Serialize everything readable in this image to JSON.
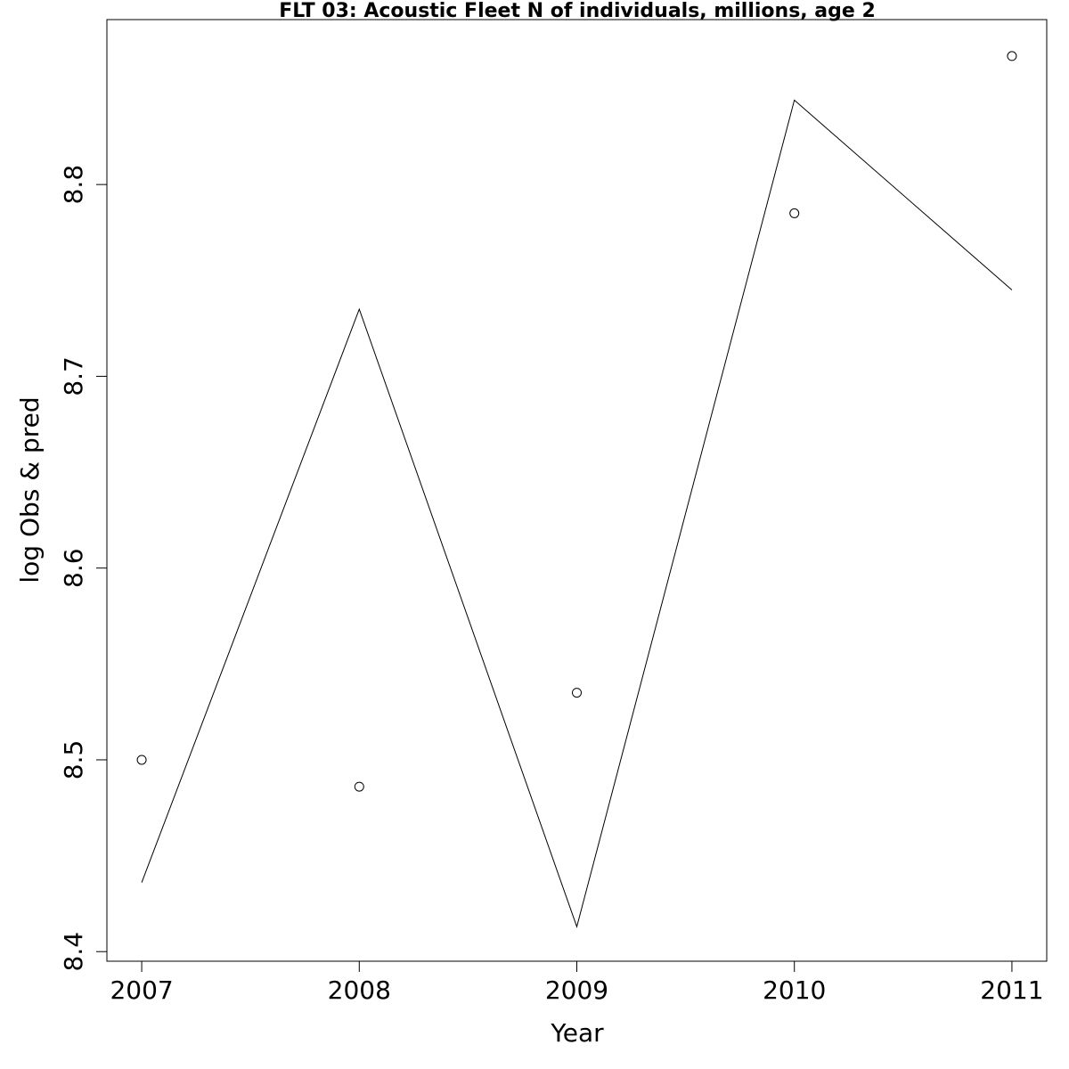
{
  "chart_data": {
    "type": "line",
    "title": "FLT 03: Acoustic Fleet  N of individuals, millions, age 2",
    "x_label": "Year",
    "y_label": "log Obs & pred",
    "x": [
      2007,
      2008,
      2009,
      2010,
      2011
    ],
    "series": [
      {
        "type": "scatter",
        "color": "#000000",
        "values": [
          8.5,
          8.486,
          8.535,
          8.785,
          8.867
        ]
      },
      {
        "type": "line",
        "color": "#000000",
        "values": [
          8.436,
          8.735,
          8.413,
          8.844,
          8.745
        ]
      }
    ],
    "xlim": [
      2006.84,
      2011.16
    ],
    "ylim": [
      8.395,
      8.886
    ],
    "xticks": [
      2007,
      2008,
      2009,
      2010,
      2011
    ],
    "yticks": [
      8.4,
      8.5,
      8.6,
      8.7,
      8.8
    ],
    "grid": false
  }
}
